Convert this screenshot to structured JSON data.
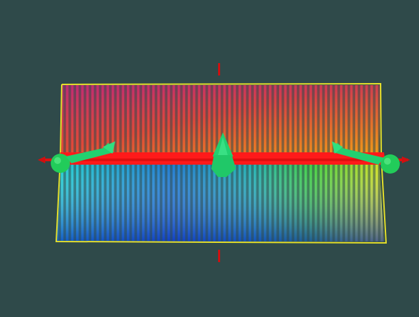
{
  "viewport": {
    "background": "#2f4a4a"
  },
  "scene": {
    "point_cloud": {
      "columns": 62,
      "top_gradient": [
        "#d23c7a",
        "#e2503a",
        "#e87a20",
        "#f0a018"
      ],
      "bottom_gradient": [
        "#1fd0d8",
        "#1e8ad6",
        "#1244c8",
        "#10d060",
        "#d8e020"
      ],
      "border_color": "#e6e02a"
    },
    "axis_color": "#ff1010",
    "marker_color": "#22d060",
    "tick_color": "#d01010"
  }
}
